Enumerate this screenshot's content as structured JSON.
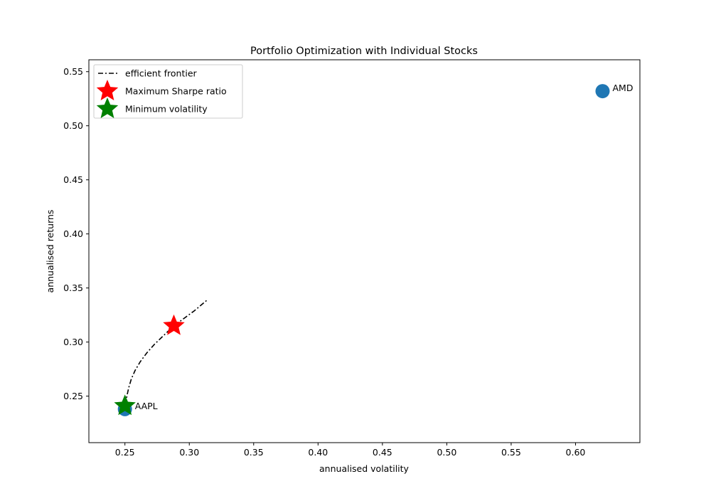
{
  "chart_data": {
    "type": "scatter",
    "title": "Portfolio Optimization with Individual Stocks",
    "xlabel": "annualised volatility",
    "ylabel": "annualised returns",
    "xlim": [
      0.222,
      0.65
    ],
    "ylim": [
      0.207,
      0.561
    ],
    "xticks": [
      0.25,
      0.3,
      0.35,
      0.4,
      0.45,
      0.5,
      0.55,
      0.6
    ],
    "yticks": [
      0.25,
      0.3,
      0.35,
      0.4,
      0.45,
      0.5,
      0.55
    ],
    "grid": false,
    "legend_position": "top-left",
    "stocks": [
      {
        "name": "AMD",
        "x": 0.621,
        "y": 0.532
      },
      {
        "name": "AAPL",
        "x": 0.25,
        "y": 0.238
      }
    ],
    "frontier": {
      "label": "efficient frontier",
      "color": "#000000",
      "x": [
        0.2505,
        0.2515,
        0.253,
        0.255,
        0.258,
        0.262,
        0.267,
        0.273,
        0.28,
        0.288,
        0.296,
        0.304,
        0.314
      ],
      "y": [
        0.242,
        0.25,
        0.258,
        0.266,
        0.274,
        0.282,
        0.29,
        0.298,
        0.306,
        0.315,
        0.322,
        0.329,
        0.339
      ]
    },
    "max_sharpe": {
      "label": "Maximum Sharpe ratio",
      "x": 0.288,
      "y": 0.315,
      "color": "#ff0000"
    },
    "min_volatility": {
      "label": "Minimum volatility",
      "x": 0.25,
      "y": 0.241,
      "color": "#008000"
    },
    "stock_color": "#1f77b4"
  }
}
